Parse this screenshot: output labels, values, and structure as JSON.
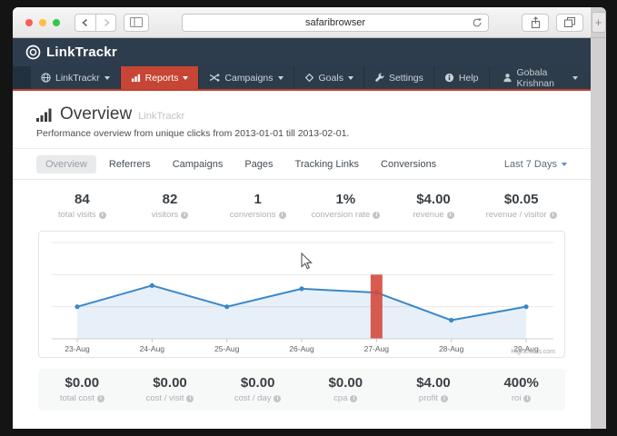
{
  "browser": {
    "url_text": "safaribrowser",
    "new_tab_label": "+"
  },
  "header": {
    "brand": "LinkTrackr"
  },
  "nav": {
    "items": [
      {
        "label": "LinkTrackr"
      },
      {
        "label": "Reports"
      },
      {
        "label": "Campaigns"
      },
      {
        "label": "Goals"
      },
      {
        "label": "Settings"
      },
      {
        "label": "Help"
      }
    ],
    "active_item": "Reports",
    "user": "Gobala Krishnan"
  },
  "page": {
    "title": "Overview",
    "title_suffix": "LinkTrackr",
    "subtitle": "Performance overview from unique clicks from 2013-01-01 till 2013-02-01."
  },
  "tabs": {
    "items": [
      "Overview",
      "Referrers",
      "Campaigns",
      "Pages",
      "Tracking Links",
      "Conversions"
    ],
    "active": "Overview",
    "range_selector": "Last 7 Days"
  },
  "stats_top": [
    {
      "value": "84",
      "label": "total visits"
    },
    {
      "value": "82",
      "label": "visitors"
    },
    {
      "value": "1",
      "label": "conversions"
    },
    {
      "value": "1%",
      "label": "conversion rate"
    },
    {
      "value": "$4.00",
      "label": "revenue"
    },
    {
      "value": "$0.05",
      "label": "revenue / visitor"
    }
  ],
  "stats_bottom": [
    {
      "value": "$0.00",
      "label": "total cost"
    },
    {
      "value": "$0.00",
      "label": "cost / visit"
    },
    {
      "value": "$0.00",
      "label": "cost / day"
    },
    {
      "value": "$0.00",
      "label": "cpa"
    },
    {
      "value": "$4.00",
      "label": "profit"
    },
    {
      "value": "400%",
      "label": "roi"
    }
  ],
  "chart_data": {
    "type": "line",
    "categories": [
      "23-Aug",
      "24-Aug",
      "25-Aug",
      "26-Aug",
      "27-Aug",
      "28-Aug",
      "29-Aug"
    ],
    "series": [
      {
        "name": "visits",
        "type": "area-line",
        "color": "#3a87c8",
        "values": [
          5,
          8.3,
          5,
          7.8,
          7.2,
          2.9,
          5
        ]
      },
      {
        "name": "highlight",
        "type": "column",
        "color": "#d5493d",
        "values": [
          null,
          null,
          null,
          null,
          10,
          null,
          null
        ]
      }
    ],
    "ylim": [
      0,
      15
    ],
    "ytick_step": 5,
    "grid": true,
    "legend": "none",
    "credit": "Highcharts.com"
  },
  "colors": {
    "header_bg": "#2e3d4d",
    "nav_bg": "#223140",
    "nav_item_bg": "#2d3c4b",
    "accent_red": "#c64534",
    "line_blue": "#3a87c8",
    "column_red": "#d5493d"
  }
}
